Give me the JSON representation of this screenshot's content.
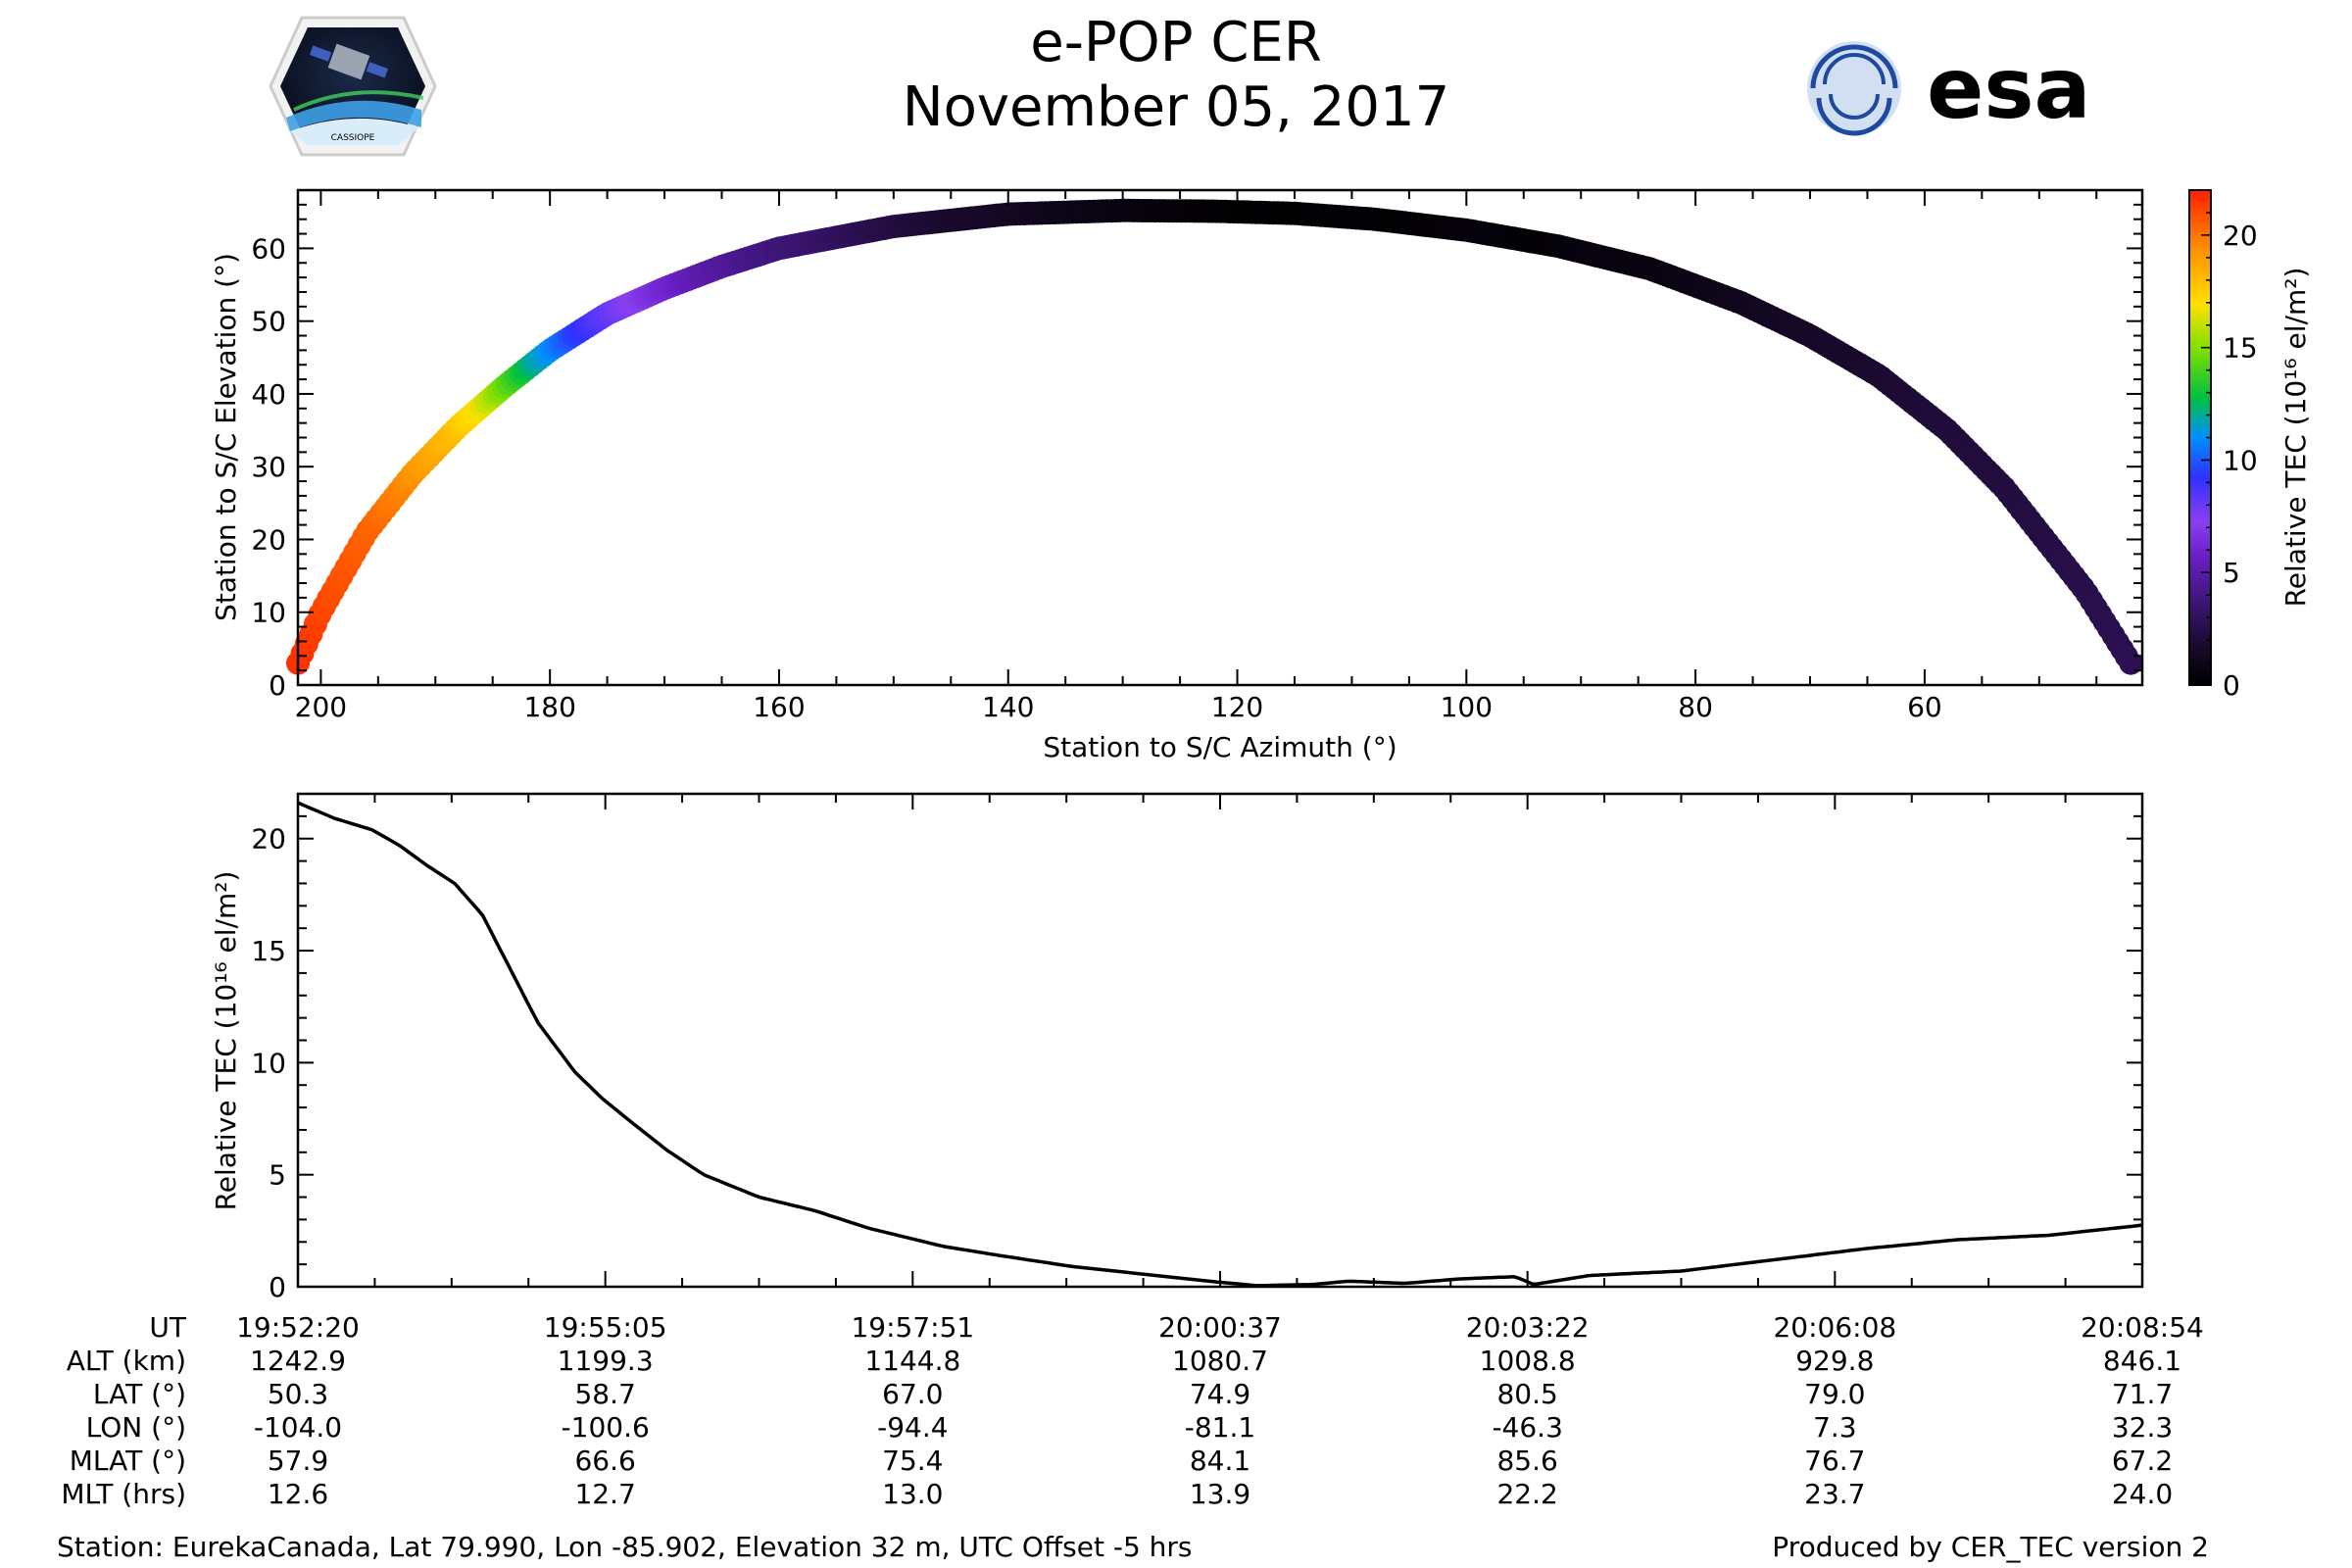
{
  "header": {
    "title_line1": "e-POP CER",
    "title_line2": "November 05, 2017",
    "logo_left_text": "CASSIOPE",
    "logo_right_text": "esa"
  },
  "colors": {
    "background": "#ffffff",
    "line": "#000000",
    "colormap": [
      "#000000",
      "#1a0a2e",
      "#3a1470",
      "#6a1fc7",
      "#8a3ff2",
      "#3030ff",
      "#0090ff",
      "#00c040",
      "#80e000",
      "#ffe000",
      "#ff9000",
      "#ff2000"
    ]
  },
  "chart_data": [
    {
      "type": "scatter",
      "name": "elevation-vs-azimuth",
      "xlabel": "Station to S/C Azimuth (°)",
      "ylabel": "Station to S/C Elevation (°)",
      "xlim": [
        202,
        41
      ],
      "ylim": [
        0,
        68
      ],
      "xticks": [
        200,
        180,
        160,
        140,
        120,
        100,
        80,
        60
      ],
      "yticks": [
        0,
        10,
        20,
        30,
        40,
        50,
        60
      ],
      "description_of_track": "pass elevation rises from ~3° at az 202 to ~65° near az 122, then falls to ~3° at az 42; colour = relative TEC",
      "track": {
        "azimuth": [
          202,
          200,
          196,
          192,
          188,
          184,
          180,
          175,
          170,
          165,
          160,
          150,
          140,
          130,
          122,
          115,
          108,
          100,
          92,
          84,
          76,
          70,
          64,
          58,
          53,
          49,
          46,
          44,
          42
        ],
        "elevation": [
          3,
          10,
          21,
          29,
          35.5,
          41,
          46,
          51,
          54.5,
          57.5,
          60,
          63,
          64.7,
          65.2,
          65.1,
          64.8,
          64,
          62.5,
          60.3,
          57.2,
          52.5,
          48,
          42.5,
          35,
          27,
          19,
          13,
          8,
          3
        ]
      },
      "colorbar": {
        "label": "Relative TEC (10¹⁶ el/m²)",
        "range": [
          0,
          22
        ],
        "ticks": [
          0,
          5,
          10,
          15,
          20
        ]
      }
    },
    {
      "type": "line",
      "name": "relative-tec-vs-time",
      "ylabel": "Relative TEC (10¹⁶ el/m²)",
      "xlim": [
        0,
        1000
      ],
      "ylim": [
        0,
        22
      ],
      "yticks": [
        0,
        5,
        10,
        15,
        20
      ],
      "x_fraction": [
        0,
        0.02,
        0.04,
        0.055,
        0.07,
        0.085,
        0.1,
        0.115,
        0.13,
        0.15,
        0.165,
        0.18,
        0.2,
        0.22,
        0.25,
        0.28,
        0.31,
        0.35,
        0.38,
        0.42,
        0.46,
        0.5,
        0.52,
        0.55,
        0.57,
        0.6,
        0.63,
        0.66,
        0.67,
        0.7,
        0.75,
        0.8,
        0.85,
        0.9,
        0.95,
        1.0
      ],
      "values": [
        21.6,
        20.9,
        20.4,
        19.7,
        18.8,
        18.0,
        16.6,
        14.2,
        11.8,
        9.6,
        8.4,
        7.4,
        6.1,
        5.0,
        4.0,
        3.4,
        2.6,
        1.8,
        1.4,
        0.9,
        0.55,
        0.2,
        0.05,
        0.1,
        0.25,
        0.15,
        0.35,
        0.45,
        0.1,
        0.5,
        0.7,
        1.2,
        1.7,
        2.1,
        2.3,
        2.75
      ],
      "time_labels": [
        {
          "ut": "19:52:20",
          "alt": "1242.9",
          "lat": "50.3",
          "lon": "-104.0",
          "mlat": "57.9",
          "mlt": "12.6"
        },
        {
          "ut": "19:55:05",
          "alt": "1199.3",
          "lat": "58.7",
          "lon": "-100.6",
          "mlat": "66.6",
          "mlt": "12.7"
        },
        {
          "ut": "19:57:51",
          "alt": "1144.8",
          "lat": "67.0",
          "lon": "-94.4",
          "mlat": "75.4",
          "mlt": "13.0"
        },
        {
          "ut": "20:00:37",
          "alt": "1080.7",
          "lat": "74.9",
          "lon": "-81.1",
          "mlat": "84.1",
          "mlt": "13.9"
        },
        {
          "ut": "20:03:22",
          "alt": "1008.8",
          "lat": "80.5",
          "lon": "-46.3",
          "mlat": "85.6",
          "mlt": "22.2"
        },
        {
          "ut": "20:06:08",
          "alt": "929.8",
          "lat": "79.0",
          "lon": "7.3",
          "mlat": "76.7",
          "mlt": "23.7"
        },
        {
          "ut": "20:08:54",
          "alt": "846.1",
          "lat": "71.7",
          "lon": "32.3",
          "mlat": "67.2",
          "mlt": "24.0"
        }
      ],
      "row_labels": [
        "UT",
        "ALT (km)",
        "LAT (°)",
        "LON (°)",
        "MLAT (°)",
        "MLT (hrs)"
      ]
    }
  ],
  "footer": {
    "station": "Station: EurekaCanada, Lat 79.990, Lon -85.902, Elevation 32 m, UTC Offset -5 hrs",
    "produced_by": "Produced by CER_TEC version 2"
  }
}
